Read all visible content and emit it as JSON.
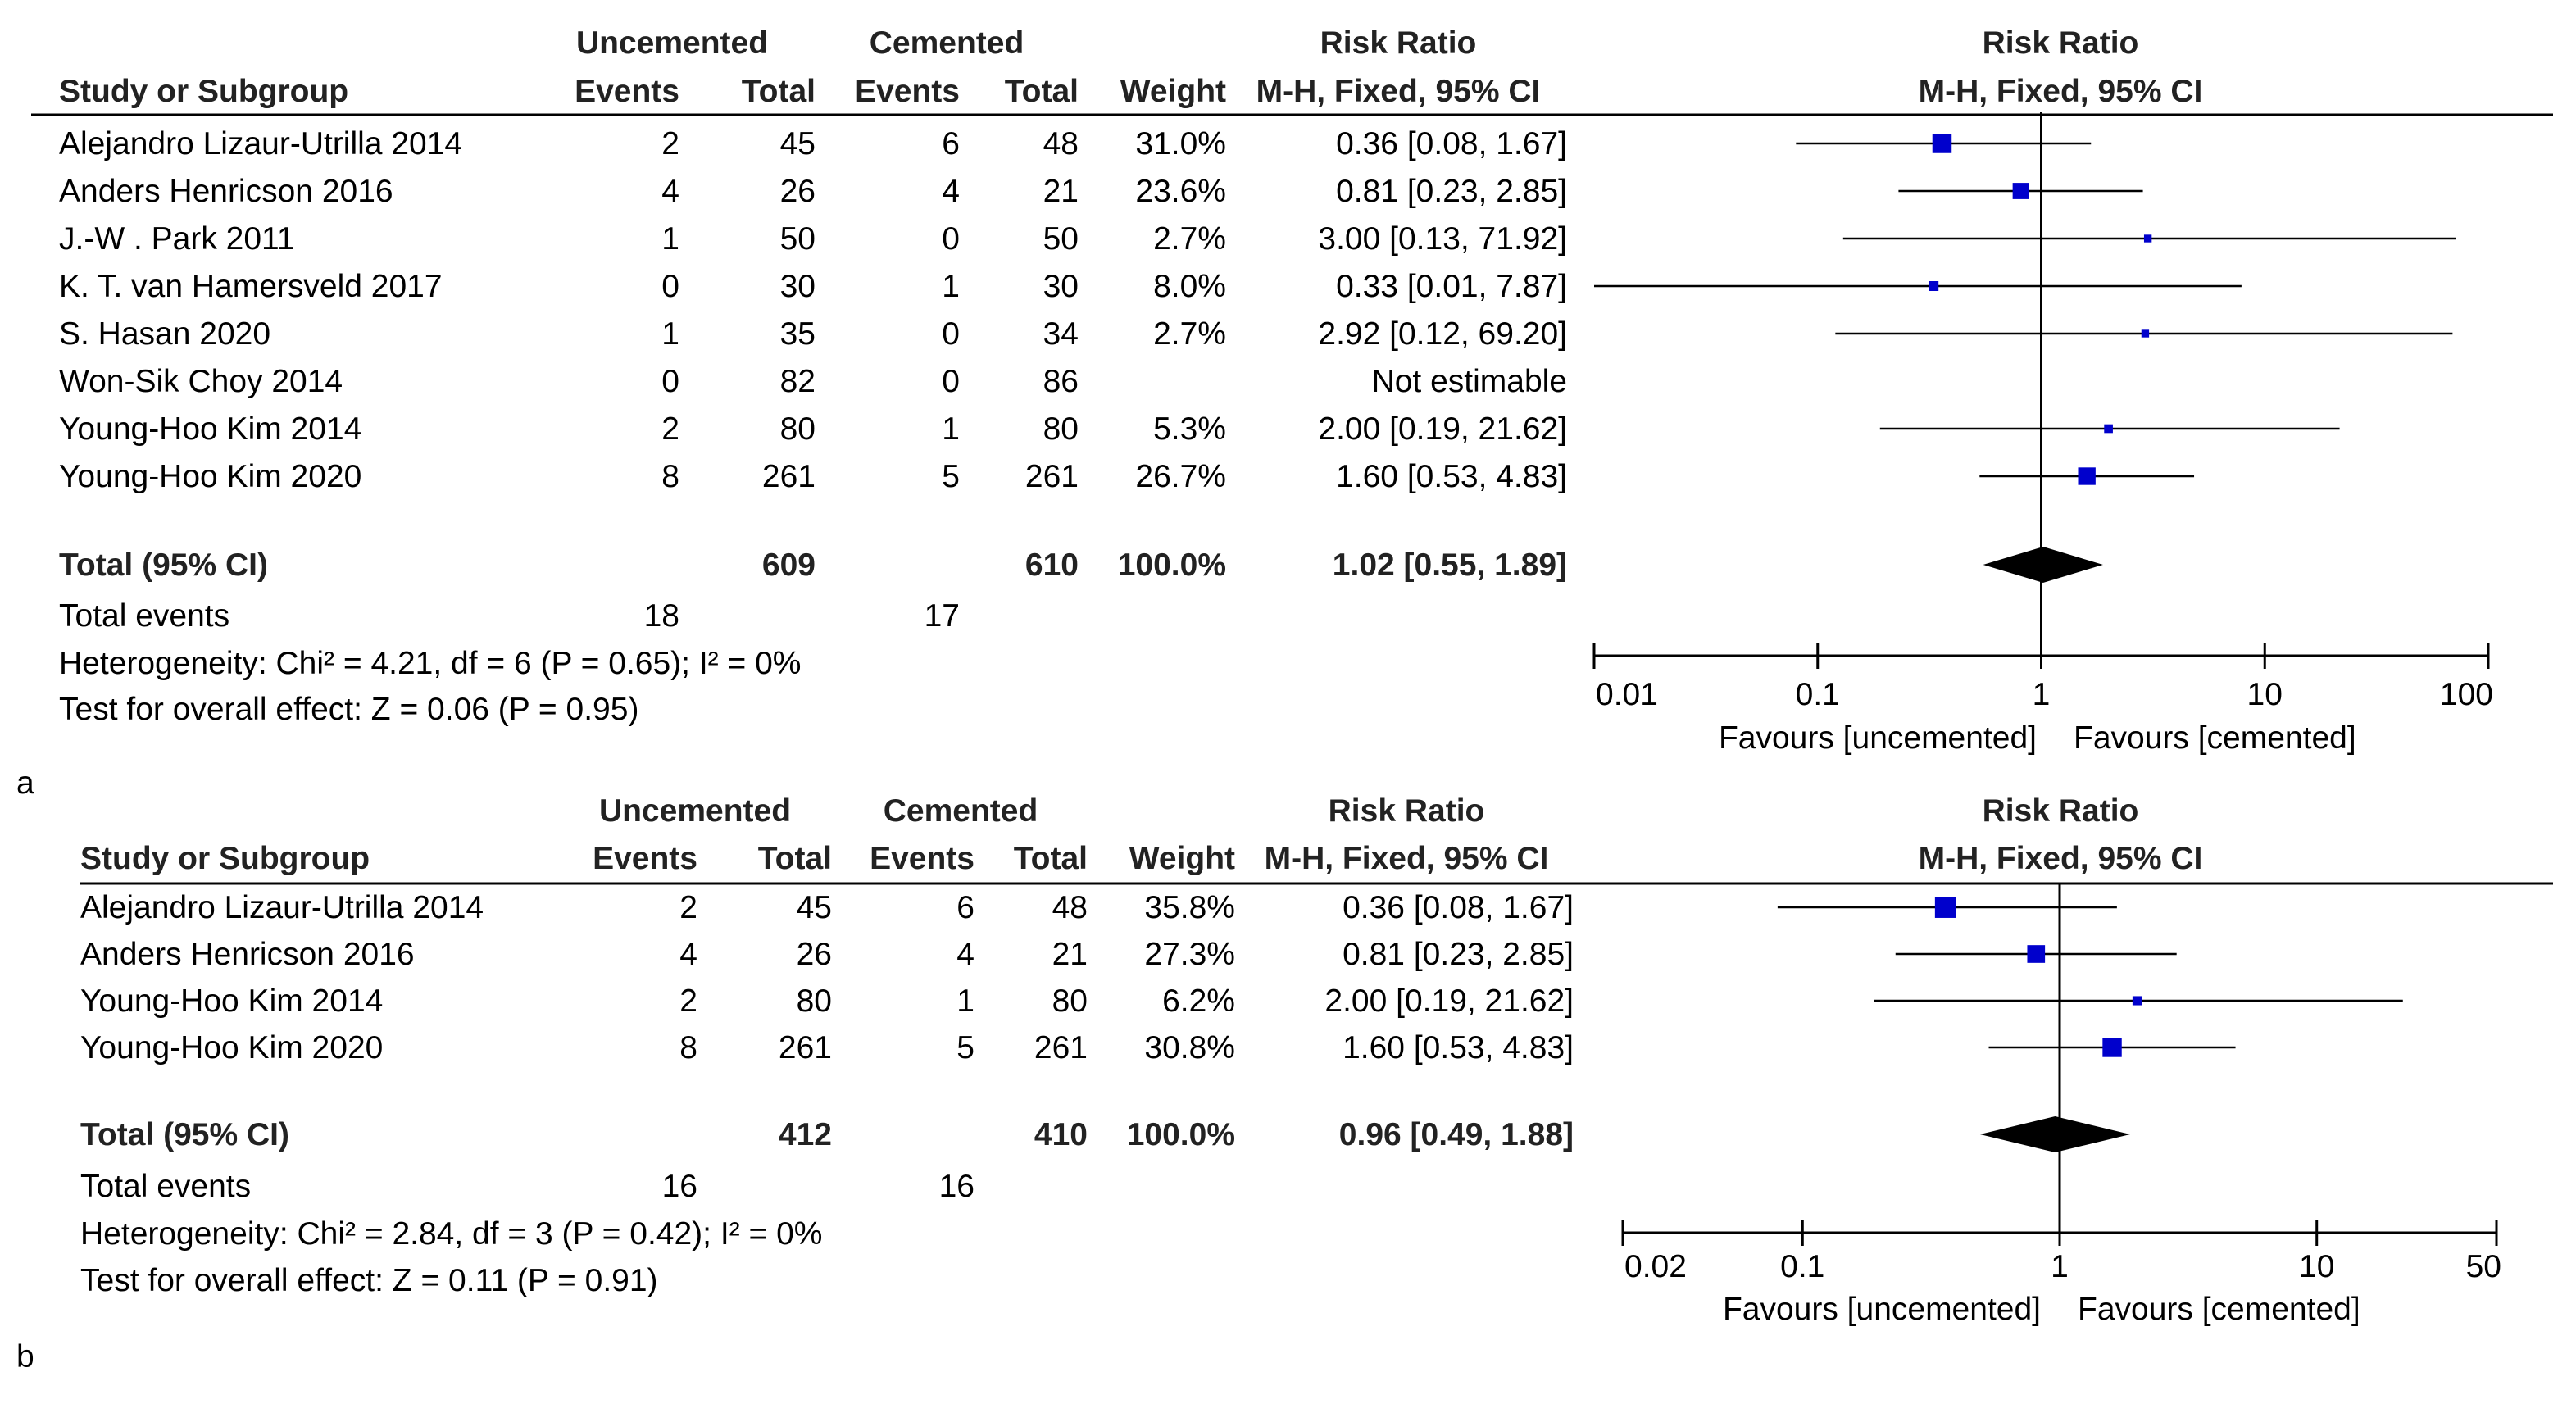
{
  "colors": {
    "marker": "#0000cc",
    "line": "#000000",
    "text": "#000000"
  },
  "chart_data": [
    {
      "type": "forest",
      "panel_label": "a",
      "group_headers": {
        "experimental": "Uncemented",
        "control": "Cemented",
        "effect": "Risk Ratio",
        "plot": "Risk Ratio"
      },
      "column_headers": {
        "study": "Study or Subgroup",
        "exp_events": "Events",
        "exp_total": "Total",
        "ctl_events": "Events",
        "ctl_total": "Total",
        "weight": "Weight",
        "effect": "M-H, Fixed, 95% CI",
        "plot": "M-H, Fixed, 95% CI"
      },
      "x_scale": "log",
      "xlim": [
        0.01,
        100
      ],
      "ticks": [
        0.01,
        0.1,
        1,
        10,
        100
      ],
      "tick_labels": [
        "0.01",
        "0.1",
        "1",
        "10",
        "100"
      ],
      "favours_left": "Favours [uncemented]",
      "favours_right": "Favours [cemented]",
      "studies": [
        {
          "name": "Alejandro Lizaur-Utrilla 2014",
          "exp_events": "2",
          "exp_total": "45",
          "ctl_events": "6",
          "ctl_total": "48",
          "weight": "31.0%",
          "ci_text": "0.36 [0.08, 1.67]",
          "rr": 0.36,
          "lo": 0.08,
          "hi": 1.67,
          "w": 31.0
        },
        {
          "name": "Anders Henricson 2016",
          "exp_events": "4",
          "exp_total": "26",
          "ctl_events": "4",
          "ctl_total": "21",
          "weight": "23.6%",
          "ci_text": "0.81 [0.23, 2.85]",
          "rr": 0.81,
          "lo": 0.23,
          "hi": 2.85,
          "w": 23.6
        },
        {
          "name": "J.-W . Park 2011",
          "exp_events": "1",
          "exp_total": "50",
          "ctl_events": "0",
          "ctl_total": "50",
          "weight": "2.7%",
          "ci_text": "3.00 [0.13, 71.92]",
          "rr": 3.0,
          "lo": 0.13,
          "hi": 71.92,
          "w": 2.7
        },
        {
          "name": "K. T. van Hamersveld 2017",
          "exp_events": "0",
          "exp_total": "30",
          "ctl_events": "1",
          "ctl_total": "30",
          "weight": "8.0%",
          "ci_text": "0.33 [0.01, 7.87]",
          "rr": 0.33,
          "lo": 0.01,
          "hi": 7.87,
          "w": 8.0
        },
        {
          "name": "S. Hasan 2020",
          "exp_events": "1",
          "exp_total": "35",
          "ctl_events": "0",
          "ctl_total": "34",
          "weight": "2.7%",
          "ci_text": "2.92 [0.12, 69.20]",
          "rr": 2.92,
          "lo": 0.12,
          "hi": 69.2,
          "w": 2.7
        },
        {
          "name": "Won-Sik Choy 2014",
          "exp_events": "0",
          "exp_total": "82",
          "ctl_events": "0",
          "ctl_total": "86",
          "weight": "",
          "ci_text": "Not estimable",
          "rr": null,
          "lo": null,
          "hi": null,
          "w": null
        },
        {
          "name": "Young-Hoo Kim 2014",
          "exp_events": "2",
          "exp_total": "80",
          "ctl_events": "1",
          "ctl_total": "80",
          "weight": "5.3%",
          "ci_text": "2.00 [0.19, 21.62]",
          "rr": 2.0,
          "lo": 0.19,
          "hi": 21.62,
          "w": 5.3
        },
        {
          "name": "Young-Hoo Kim 2020",
          "exp_events": "8",
          "exp_total": "261",
          "ctl_events": "5",
          "ctl_total": "261",
          "weight": "26.7%",
          "ci_text": "1.60 [0.53, 4.83]",
          "rr": 1.6,
          "lo": 0.53,
          "hi": 4.83,
          "w": 26.7
        }
      ],
      "total": {
        "label": "Total (95% CI)",
        "exp_total": "609",
        "ctl_total": "610",
        "weight": "100.0%",
        "ci_text": "1.02 [0.55, 1.89]",
        "rr": 1.02,
        "lo": 0.55,
        "hi": 1.89
      },
      "total_events": {
        "label": "Total events",
        "exp": "18",
        "ctl": "17"
      },
      "heterogeneity": "Heterogeneity: Chi² = 4.21, df = 6 (P = 0.65); I² = 0%",
      "overall_effect": "Test for overall effect: Z = 0.06 (P = 0.95)"
    },
    {
      "type": "forest",
      "panel_label": "b",
      "group_headers": {
        "experimental": "Uncemented",
        "control": "Cemented",
        "effect": "Risk Ratio",
        "plot": "Risk Ratio"
      },
      "column_headers": {
        "study": "Study or Subgroup",
        "exp_events": "Events",
        "exp_total": "Total",
        "ctl_events": "Events",
        "ctl_total": "Total",
        "weight": "Weight",
        "effect": "M-H, Fixed, 95% CI",
        "plot": "M-H, Fixed, 95% CI"
      },
      "x_scale": "log",
      "xlim": [
        0.02,
        50
      ],
      "ticks": [
        0.02,
        0.1,
        1,
        10,
        50
      ],
      "tick_labels": [
        "0.02",
        "0.1",
        "1",
        "10",
        "50"
      ],
      "favours_left": "Favours [uncemented]",
      "favours_right": "Favours [cemented]",
      "studies": [
        {
          "name": "Alejandro Lizaur-Utrilla 2014",
          "exp_events": "2",
          "exp_total": "45",
          "ctl_events": "6",
          "ctl_total": "48",
          "weight": "35.8%",
          "ci_text": "0.36 [0.08, 1.67]",
          "rr": 0.36,
          "lo": 0.08,
          "hi": 1.67,
          "w": 35.8
        },
        {
          "name": "Anders Henricson 2016",
          "exp_events": "4",
          "exp_total": "26",
          "ctl_events": "4",
          "ctl_total": "21",
          "weight": "27.3%",
          "ci_text": "0.81 [0.23, 2.85]",
          "rr": 0.81,
          "lo": 0.23,
          "hi": 2.85,
          "w": 27.3
        },
        {
          "name": "Young-Hoo Kim 2014",
          "exp_events": "2",
          "exp_total": "80",
          "ctl_events": "1",
          "ctl_total": "80",
          "weight": "6.2%",
          "ci_text": "2.00 [0.19, 21.62]",
          "rr": 2.0,
          "lo": 0.19,
          "hi": 21.62,
          "w": 6.2
        },
        {
          "name": "Young-Hoo Kim 2020",
          "exp_events": "8",
          "exp_total": "261",
          "ctl_events": "5",
          "ctl_total": "261",
          "weight": "30.8%",
          "ci_text": "1.60 [0.53, 4.83]",
          "rr": 1.6,
          "lo": 0.53,
          "hi": 4.83,
          "w": 30.8
        }
      ],
      "total": {
        "label": "Total (95% CI)",
        "exp_total": "412",
        "ctl_total": "410",
        "weight": "100.0%",
        "ci_text": "0.96 [0.49, 1.88]",
        "rr": 0.96,
        "lo": 0.49,
        "hi": 1.88
      },
      "total_events": {
        "label": "Total events",
        "exp": "16",
        "ctl": "16"
      },
      "heterogeneity": "Heterogeneity: Chi² = 2.84, df = 3 (P = 0.42); I² = 0%",
      "overall_effect": "Test for overall effect: Z = 0.11 (P = 0.91)"
    }
  ]
}
